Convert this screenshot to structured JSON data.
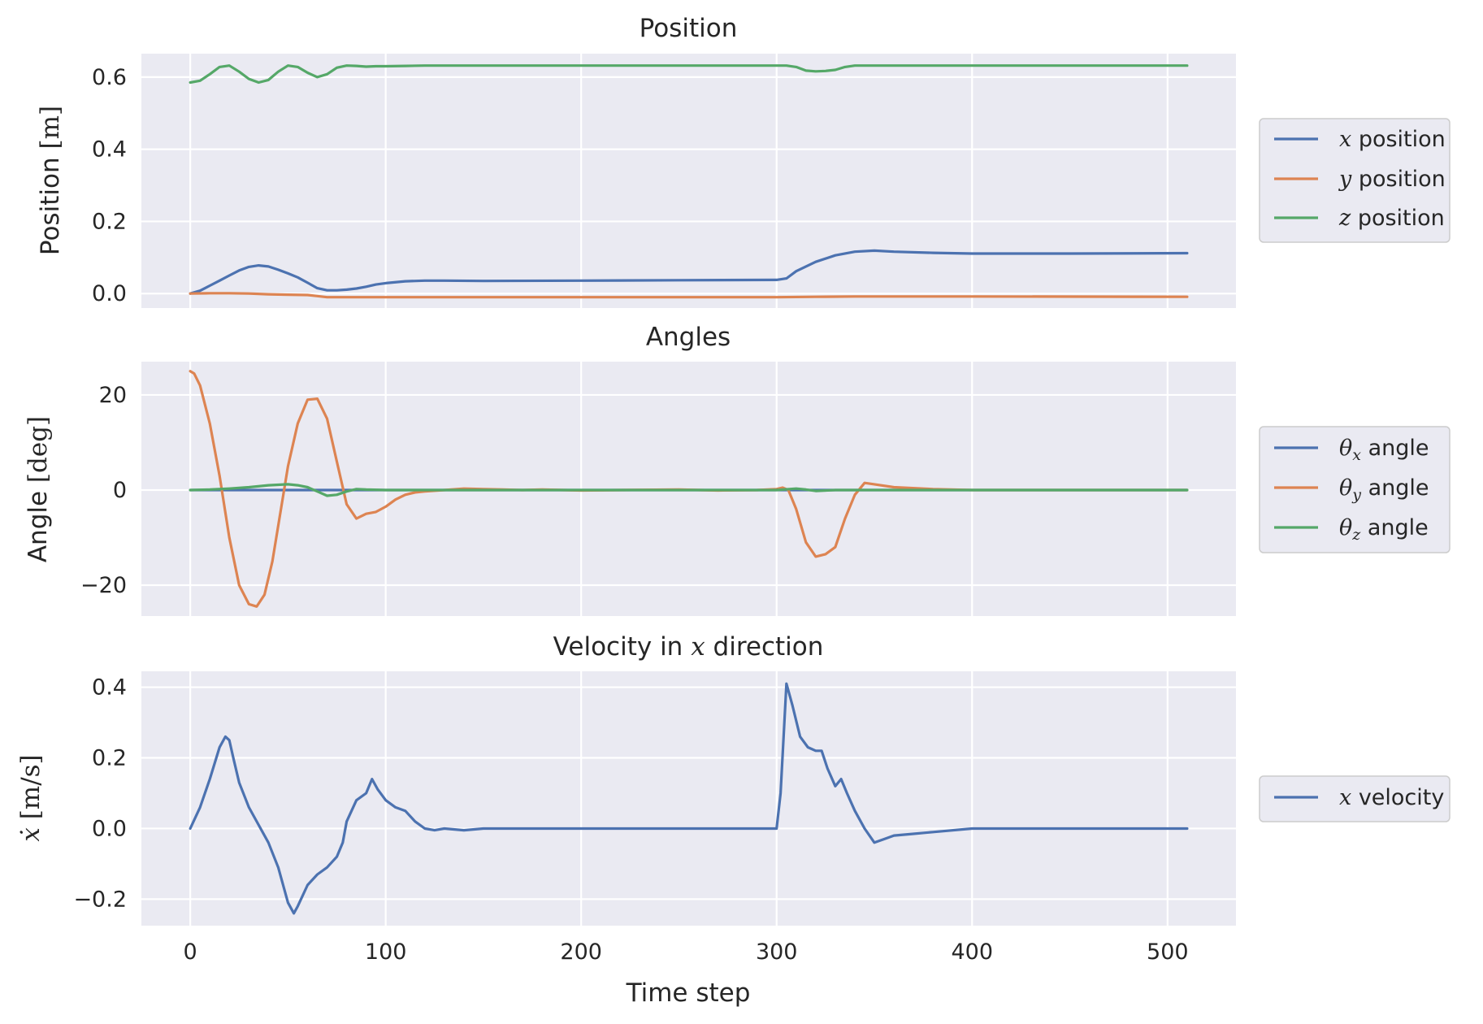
{
  "chart_data": [
    {
      "type": "line",
      "title": "Position",
      "ylabel": "Position [m]",
      "xlabel": "",
      "xlim": [
        -25,
        535
      ],
      "ylim": [
        -0.04,
        0.665
      ],
      "yticks": [
        0.0,
        0.2,
        0.4,
        0.6
      ],
      "ytick_labels": [
        "0.0",
        "0.2",
        "0.4",
        "0.6"
      ],
      "xticks": [
        0,
        100,
        200,
        300,
        400,
        500
      ],
      "grid": true,
      "legend_position": "right",
      "series": [
        {
          "name": "x position",
          "color": "#4c72b0",
          "x": [
            0,
            5,
            10,
            15,
            20,
            25,
            30,
            35,
            40,
            45,
            50,
            55,
            60,
            65,
            70,
            75,
            80,
            85,
            90,
            95,
            100,
            110,
            120,
            130,
            150,
            200,
            250,
            300,
            305,
            310,
            320,
            330,
            340,
            350,
            360,
            380,
            400,
            450,
            510
          ],
          "y": [
            0.0,
            0.008,
            0.022,
            0.036,
            0.05,
            0.064,
            0.074,
            0.078,
            0.075,
            0.066,
            0.056,
            0.045,
            0.03,
            0.015,
            0.009,
            0.009,
            0.011,
            0.014,
            0.019,
            0.025,
            0.029,
            0.034,
            0.036,
            0.036,
            0.035,
            0.036,
            0.037,
            0.038,
            0.042,
            0.062,
            0.088,
            0.106,
            0.116,
            0.119,
            0.116,
            0.113,
            0.111,
            0.111,
            0.112
          ]
        },
        {
          "name": "y position",
          "color": "#dd8452",
          "x": [
            0,
            10,
            20,
            30,
            40,
            50,
            60,
            65,
            70,
            75,
            80,
            100,
            200,
            300,
            320,
            340,
            400,
            510
          ],
          "y": [
            0.0,
            0.001,
            0.001,
            0.0,
            -0.002,
            -0.003,
            -0.004,
            -0.007,
            -0.01,
            -0.01,
            -0.01,
            -0.01,
            -0.01,
            -0.01,
            -0.009,
            -0.008,
            -0.008,
            -0.009
          ]
        },
        {
          "name": "z position",
          "color": "#55a868",
          "x": [
            0,
            5,
            10,
            15,
            20,
            25,
            30,
            35,
            40,
            45,
            50,
            55,
            60,
            65,
            70,
            75,
            80,
            85,
            90,
            95,
            100,
            110,
            120,
            150,
            200,
            250,
            300,
            305,
            310,
            315,
            320,
            325,
            330,
            335,
            340,
            350,
            400,
            510
          ],
          "y": [
            0.585,
            0.59,
            0.608,
            0.628,
            0.632,
            0.615,
            0.595,
            0.585,
            0.592,
            0.615,
            0.632,
            0.628,
            0.612,
            0.6,
            0.608,
            0.626,
            0.632,
            0.631,
            0.629,
            0.63,
            0.63,
            0.631,
            0.632,
            0.632,
            0.632,
            0.632,
            0.632,
            0.632,
            0.628,
            0.618,
            0.616,
            0.617,
            0.62,
            0.628,
            0.632,
            0.632,
            0.632,
            0.632
          ]
        }
      ]
    },
    {
      "type": "line",
      "title": "Angles",
      "ylabel": "Angle [deg]",
      "xlabel": "",
      "xlim": [
        -25,
        535
      ],
      "ylim": [
        -26.5,
        27
      ],
      "yticks": [
        -20,
        0,
        20
      ],
      "ytick_labels": [
        "−20",
        "0",
        "20"
      ],
      "xticks": [
        0,
        100,
        200,
        300,
        400,
        500
      ],
      "grid": true,
      "legend_position": "right",
      "series": [
        {
          "name": "θx angle",
          "color": "#4c72b0",
          "x": [
            0,
            100,
            200,
            300,
            400,
            510
          ],
          "y": [
            0,
            0,
            0,
            0,
            0,
            0
          ]
        },
        {
          "name": "θy angle",
          "color": "#dd8452",
          "x": [
            0,
            2,
            5,
            10,
            15,
            20,
            25,
            30,
            34,
            38,
            42,
            46,
            50,
            55,
            60,
            65,
            70,
            75,
            80,
            85,
            90,
            95,
            100,
            105,
            110,
            115,
            120,
            130,
            140,
            150,
            160,
            170,
            180,
            200,
            220,
            250,
            270,
            290,
            300,
            303,
            306,
            310,
            315,
            320,
            325,
            330,
            335,
            340,
            345,
            350,
            360,
            380,
            400,
            450,
            510
          ],
          "y": [
            25,
            24.5,
            22,
            14,
            3,
            -10,
            -20,
            -24,
            -24.5,
            -22,
            -15,
            -5,
            5,
            14,
            19,
            19.2,
            15,
            6,
            -3,
            -6,
            -5,
            -4.6,
            -3.5,
            -2,
            -1,
            -0.5,
            -0.3,
            0,
            0.3,
            0.2,
            0.1,
            0,
            0.1,
            -0.1,
            0,
            0.1,
            -0.1,
            0,
            0.2,
            0.5,
            0,
            -4,
            -11,
            -14,
            -13.5,
            -12,
            -6,
            -1,
            1.5,
            1.2,
            0.6,
            0.2,
            0,
            0,
            0
          ]
        },
        {
          "name": "θz angle",
          "color": "#55a868",
          "x": [
            0,
            10,
            20,
            30,
            40,
            50,
            55,
            60,
            65,
            70,
            75,
            80,
            85,
            90,
            100,
            150,
            200,
            250,
            300,
            310,
            315,
            320,
            330,
            400,
            510
          ],
          "y": [
            0,
            0.1,
            0.3,
            0.6,
            1.0,
            1.2,
            1.0,
            0.6,
            -0.3,
            -1.2,
            -1.0,
            -0.3,
            0.2,
            0.1,
            0,
            0,
            0,
            0,
            0,
            0.3,
            0.1,
            -0.2,
            0,
            0,
            0
          ]
        }
      ]
    },
    {
      "type": "line",
      "title": "Velocity in x direction",
      "ylabel": "ẋ [m/s]",
      "xlabel": "Time step",
      "xlim": [
        -25,
        535
      ],
      "ylim": [
        -0.275,
        0.445
      ],
      "yticks": [
        -0.2,
        0.0,
        0.2,
        0.4
      ],
      "ytick_labels": [
        "−0.2",
        "0.0",
        "0.2",
        "0.4"
      ],
      "xticks": [
        0,
        100,
        200,
        300,
        400,
        500
      ],
      "xtick_labels": [
        "0",
        "100",
        "200",
        "300",
        "400",
        "500"
      ],
      "grid": true,
      "legend_position": "right",
      "series": [
        {
          "name": "x velocity",
          "color": "#4c72b0",
          "x": [
            0,
            5,
            10,
            15,
            18,
            20,
            22,
            25,
            30,
            35,
            40,
            45,
            50,
            53,
            55,
            60,
            65,
            70,
            75,
            78,
            80,
            85,
            90,
            93,
            96,
            100,
            105,
            110,
            115,
            120,
            125,
            130,
            140,
            150,
            200,
            250,
            300,
            302,
            305,
            308,
            312,
            316,
            320,
            323,
            326,
            330,
            333,
            336,
            340,
            345,
            350,
            355,
            360,
            370,
            380,
            400,
            450,
            510
          ],
          "y": [
            0.0,
            0.06,
            0.14,
            0.23,
            0.26,
            0.25,
            0.2,
            0.13,
            0.06,
            0.01,
            -0.04,
            -0.11,
            -0.21,
            -0.24,
            -0.22,
            -0.16,
            -0.13,
            -0.11,
            -0.08,
            -0.04,
            0.02,
            0.08,
            0.1,
            0.14,
            0.11,
            0.08,
            0.06,
            0.05,
            0.02,
            0.0,
            -0.005,
            0.0,
            -0.005,
            0.0,
            0.0,
            0.0,
            0.0,
            0.1,
            0.41,
            0.35,
            0.26,
            0.23,
            0.22,
            0.22,
            0.17,
            0.12,
            0.14,
            0.1,
            0.05,
            0.0,
            -0.04,
            -0.03,
            -0.02,
            -0.015,
            -0.01,
            0.0,
            0.0,
            0.0
          ]
        }
      ]
    }
  ]
}
